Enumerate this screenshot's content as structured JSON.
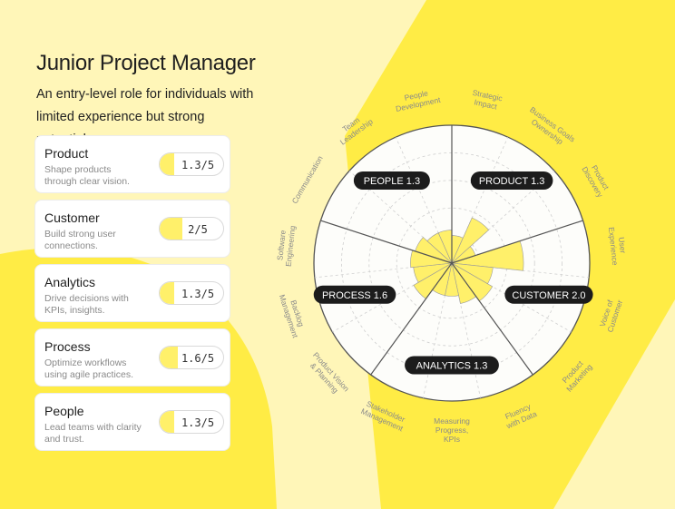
{
  "header": {
    "title": "Junior Project Manager",
    "subtitle": "An entry-level role for individuals with limited experience but strong potential."
  },
  "colors": {
    "background": "#fff6b8",
    "accent": "#ffec45",
    "bar_fill": "#fff06a",
    "badge": "#1c1c1c"
  },
  "cards": [
    {
      "name": "Product",
      "description": "Shape products through clear vision.",
      "score_label": "1.3/5",
      "score": 1.3
    },
    {
      "name": "Customer",
      "description": "Build strong user connections.",
      "score_label": "2/5",
      "score": 2.0
    },
    {
      "name": "Analytics",
      "description": "Drive decisions with KPIs, insights.",
      "score_label": "1.3/5",
      "score": 1.3
    },
    {
      "name": "Process",
      "description": "Optimize workflows using agile practices.",
      "score_label": "1.6/5",
      "score": 1.6
    },
    {
      "name": "People",
      "description": "Lead teams with clarity and trust.",
      "score_label": "1.3/5",
      "score": 1.3
    }
  ],
  "chart_data": {
    "type": "radial-bar",
    "max": 5,
    "rings": 5,
    "category_badges": [
      {
        "label": "PRODUCT 1.3"
      },
      {
        "label": "CUSTOMER 2.0"
      },
      {
        "label": "ANALYTICS 1.3"
      },
      {
        "label": "PROCESS 1.6"
      },
      {
        "label": "PEOPLE 1.3"
      }
    ],
    "axes": [
      {
        "label": [
          "Strategic",
          "Impact"
        ],
        "value": 1.0
      },
      {
        "label": [
          "Business Goals",
          "Ownership"
        ],
        "value": 1.8
      },
      {
        "label": [
          "Product",
          "Discovery"
        ],
        "value": 0.9
      },
      {
        "label": [
          "User",
          "Experience"
        ],
        "value": 2.6
      },
      {
        "label": [
          "Voice of",
          "Customer"
        ],
        "value": 1.5
      },
      {
        "label": [
          "Product",
          "Marketing"
        ],
        "value": 1.7
      },
      {
        "label": [
          "Fluency",
          "with Data"
        ],
        "value": 1.5
      },
      {
        "label": [
          "Measuring",
          "Progress,",
          "KPIs"
        ],
        "value": 1.2
      },
      {
        "label": [
          "Stakeholder",
          "Management"
        ],
        "value": 1.2
      },
      {
        "label": [
          "Product Vision",
          "& Planning"
        ],
        "value": 1.6
      },
      {
        "label": [
          "Backlog",
          "Management"
        ],
        "value": 1.4
      },
      {
        "label": [
          "Software",
          "Engineering"
        ],
        "value": 1.5
      },
      {
        "label": [
          "Communication"
        ],
        "value": 1.4
      },
      {
        "label": [
          "Team",
          "Leadership"
        ],
        "value": 1.2
      },
      {
        "label": [
          "People",
          "Development"
        ],
        "value": 1.2
      }
    ]
  }
}
